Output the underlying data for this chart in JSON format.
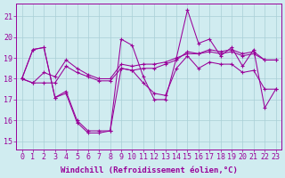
{
  "background_color": "#d0ecf0",
  "grid_color": "#a8cfd6",
  "line_color": "#990099",
  "marker_color": "#990099",
  "xlabel": "Windchill (Refroidissement éolien,°C)",
  "xlabel_fontsize": 6.5,
  "tick_fontsize": 6,
  "xlim": [
    -0.5,
    23.5
  ],
  "ylim": [
    14.6,
    21.6
  ],
  "yticks": [
    15,
    16,
    17,
    18,
    19,
    20,
    21
  ],
  "xticks": [
    0,
    1,
    2,
    3,
    4,
    5,
    6,
    7,
    8,
    9,
    10,
    11,
    12,
    13,
    14,
    15,
    16,
    17,
    18,
    19,
    20,
    21,
    22,
    23
  ],
  "series": [
    [
      18.0,
      19.4,
      19.5,
      17.1,
      17.3,
      15.9,
      15.4,
      15.4,
      15.5,
      19.9,
      19.6,
      18.1,
      17.0,
      17.0,
      19.0,
      21.3,
      19.7,
      19.9,
      19.1,
      19.5,
      18.6,
      19.4,
      16.6,
      17.5
    ],
    [
      18.0,
      19.4,
      19.5,
      17.1,
      17.4,
      16.0,
      15.5,
      15.5,
      15.5,
      18.5,
      18.4,
      17.8,
      17.3,
      17.2,
      18.5,
      19.1,
      18.5,
      18.8,
      18.7,
      18.7,
      18.3,
      18.4,
      17.5,
      17.5
    ],
    [
      18.0,
      17.8,
      17.8,
      17.8,
      18.6,
      18.3,
      18.1,
      17.9,
      17.9,
      18.5,
      18.4,
      18.5,
      18.5,
      18.7,
      18.9,
      19.3,
      19.2,
      19.4,
      19.3,
      19.4,
      19.2,
      19.3,
      18.9,
      18.9
    ],
    [
      18.0,
      17.8,
      18.3,
      18.1,
      18.9,
      18.5,
      18.2,
      18.0,
      18.0,
      18.7,
      18.6,
      18.7,
      18.7,
      18.8,
      19.0,
      19.2,
      19.2,
      19.3,
      19.2,
      19.3,
      19.1,
      19.2,
      18.9,
      18.9
    ]
  ]
}
